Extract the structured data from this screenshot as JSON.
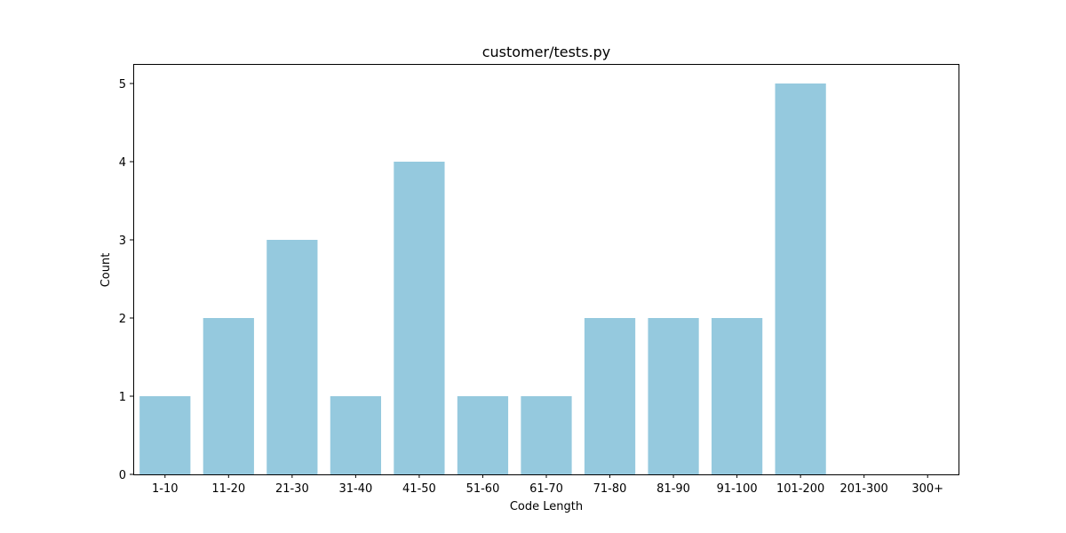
{
  "chart_data": {
    "type": "bar",
    "title": "customer/tests.py",
    "xlabel": "Code Length",
    "ylabel": "Count",
    "categories": [
      "1-10",
      "11-20",
      "21-30",
      "31-40",
      "41-50",
      "51-60",
      "61-70",
      "71-80",
      "81-90",
      "91-100",
      "101-200",
      "201-300",
      "300+"
    ],
    "values": [
      1,
      2,
      3,
      1,
      4,
      1,
      1,
      2,
      2,
      2,
      5,
      0,
      0
    ],
    "ylim": [
      0,
      5.25
    ],
    "yticks": [
      0,
      1,
      2,
      3,
      4,
      5
    ],
    "grid": false,
    "bar_color": "#95c9de"
  }
}
